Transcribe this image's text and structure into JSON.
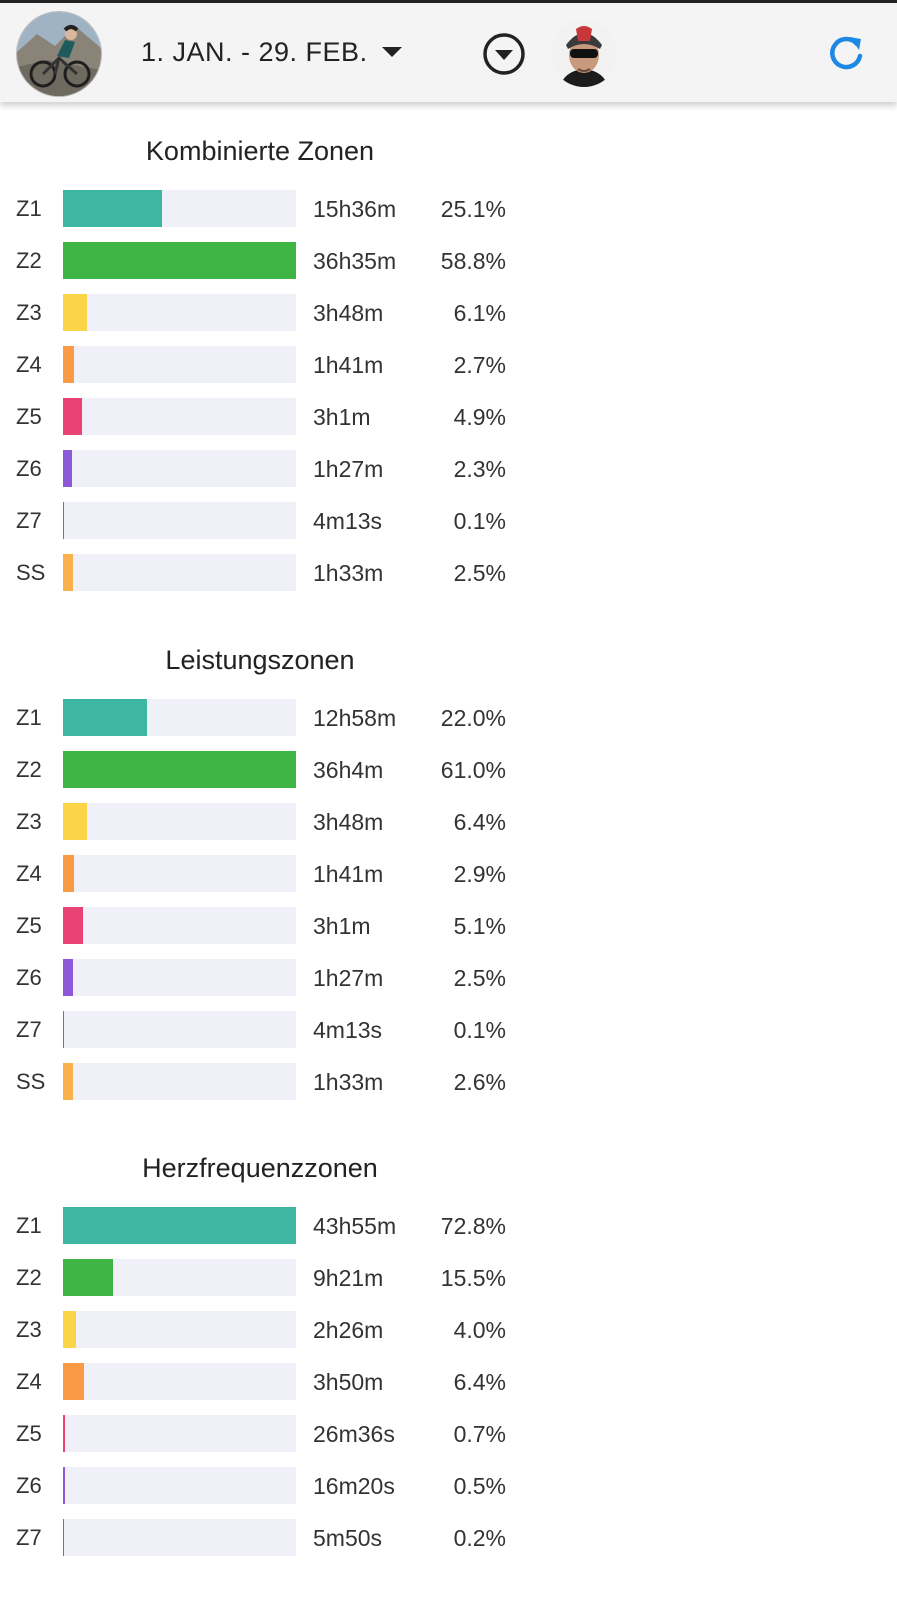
{
  "header": {
    "date_range": "1. JAN. - 29. FEB.",
    "icons": {
      "athlete_avatar": "cyclist-photo",
      "filter": "filter-circle-chevron-down-icon",
      "user_avatar": "rider-helmet-photo",
      "refresh": "refresh-icon"
    }
  },
  "colors": {
    "Z1": "#3db6a2",
    "Z2": "#3fb545",
    "Z3": "#fcd448",
    "Z4": "#fb9a44",
    "Z5": "#e84374",
    "Z6": "#8c5ad8",
    "Z7": "#8c5ad8",
    "SS": "#f9b24b",
    "track": "#f0f0f8",
    "accent": "#1e88e5"
  },
  "sections": [
    {
      "title": "Kombinierte Zonen",
      "rows": [
        {
          "zone": "Z1",
          "time": "15h36m",
          "pct": "25.1%",
          "fill": 0.427
        },
        {
          "zone": "Z2",
          "time": "36h35m",
          "pct": "58.8%",
          "fill": 1.0
        },
        {
          "zone": "Z3",
          "time": "3h48m",
          "pct": "6.1%",
          "fill": 0.104
        },
        {
          "zone": "Z4",
          "time": "1h41m",
          "pct": "2.7%",
          "fill": 0.046
        },
        {
          "zone": "Z5",
          "time": "3h1m",
          "pct": "4.9%",
          "fill": 0.083
        },
        {
          "zone": "Z6",
          "time": "1h27m",
          "pct": "2.3%",
          "fill": 0.039
        },
        {
          "zone": "Z7",
          "time": "4m13s",
          "pct": "0.1%",
          "fill": 0.002
        },
        {
          "zone": "SS",
          "time": "1h33m",
          "pct": "2.5%",
          "fill": 0.043
        }
      ]
    },
    {
      "title": "Leistungszonen",
      "rows": [
        {
          "zone": "Z1",
          "time": "12h58m",
          "pct": "22.0%",
          "fill": 0.361
        },
        {
          "zone": "Z2",
          "time": "36h4m",
          "pct": "61.0%",
          "fill": 1.0
        },
        {
          "zone": "Z3",
          "time": "3h48m",
          "pct": "6.4%",
          "fill": 0.105
        },
        {
          "zone": "Z4",
          "time": "1h41m",
          "pct": "2.9%",
          "fill": 0.048
        },
        {
          "zone": "Z5",
          "time": "3h1m",
          "pct": "5.1%",
          "fill": 0.084
        },
        {
          "zone": "Z6",
          "time": "1h27m",
          "pct": "2.5%",
          "fill": 0.041
        },
        {
          "zone": "Z7",
          "time": "4m13s",
          "pct": "0.1%",
          "fill": 0.002
        },
        {
          "zone": "SS",
          "time": "1h33m",
          "pct": "2.6%",
          "fill": 0.043
        }
      ]
    },
    {
      "title": "Herzfrequenzzonen",
      "rows": [
        {
          "zone": "Z1",
          "time": "43h55m",
          "pct": "72.8%",
          "fill": 1.0
        },
        {
          "zone": "Z2",
          "time": "9h21m",
          "pct": "15.5%",
          "fill": 0.213
        },
        {
          "zone": "Z3",
          "time": "2h26m",
          "pct": "4.0%",
          "fill": 0.055
        },
        {
          "zone": "Z4",
          "time": "3h50m",
          "pct": "6.4%",
          "fill": 0.088
        },
        {
          "zone": "Z5",
          "time": "26m36s",
          "pct": "0.7%",
          "fill": 0.01
        },
        {
          "zone": "Z6",
          "time": "16m20s",
          "pct": "0.5%",
          "fill": 0.007
        },
        {
          "zone": "Z7",
          "time": "5m50s",
          "pct": "0.2%",
          "fill": 0.003
        }
      ]
    }
  ]
}
